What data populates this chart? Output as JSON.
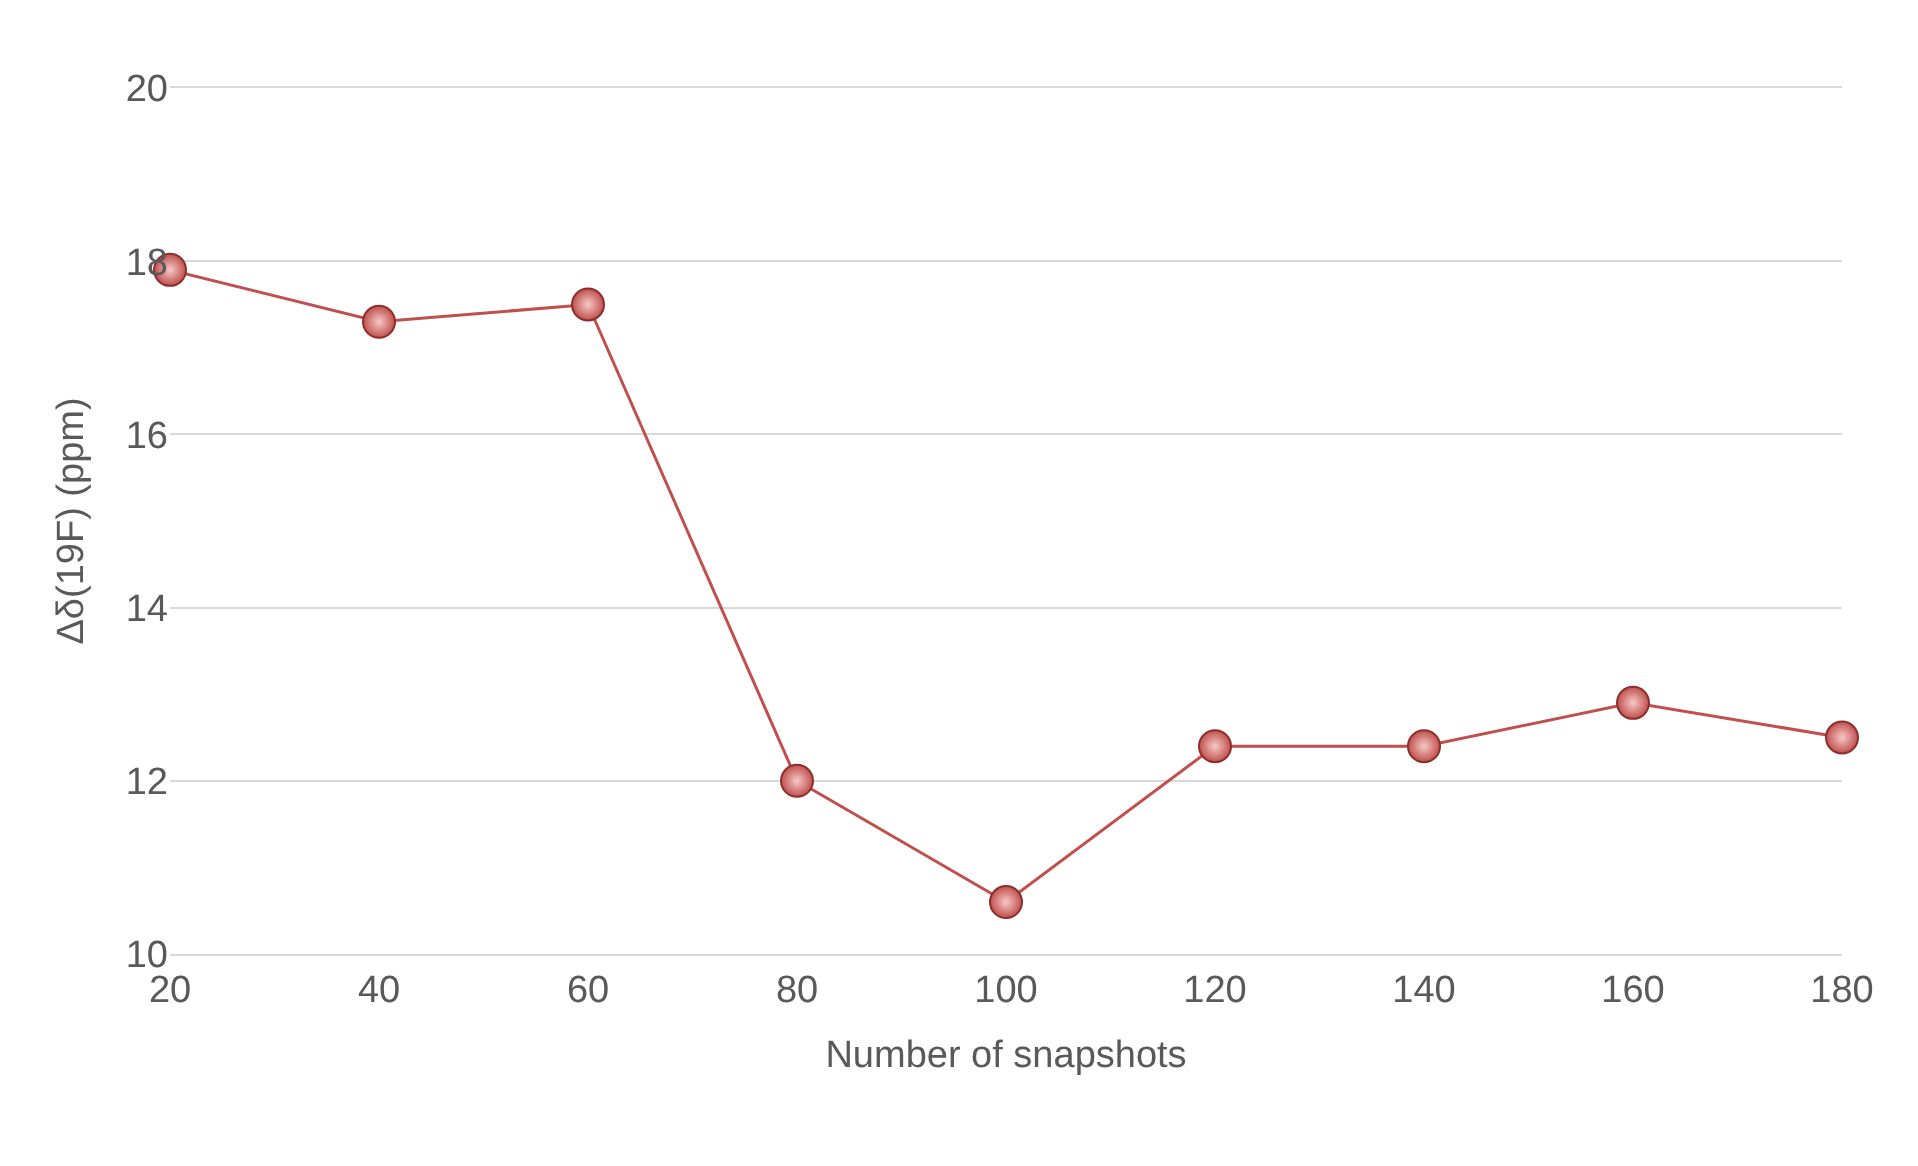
{
  "chart_data": {
    "type": "line",
    "xlabel": "Number of snapshots",
    "ylabel": "Δδ(19F) (ppm)",
    "x": [
      20,
      40,
      60,
      80,
      100,
      120,
      140,
      160,
      180
    ],
    "series": [
      {
        "color": "#c0504d",
        "values": [
          17.9,
          17.3,
          17.5,
          12.0,
          10.6,
          12.4,
          12.4,
          12.9,
          12.5
        ]
      }
    ],
    "xlim": [
      20,
      180
    ],
    "xticks": [
      20,
      40,
      60,
      80,
      100,
      120,
      140,
      160,
      180
    ],
    "ylim": [
      10,
      20
    ],
    "yticks": [
      10,
      12,
      14,
      16,
      18,
      20
    ],
    "grid": "y",
    "marker": "circle",
    "line_style": "solid"
  }
}
